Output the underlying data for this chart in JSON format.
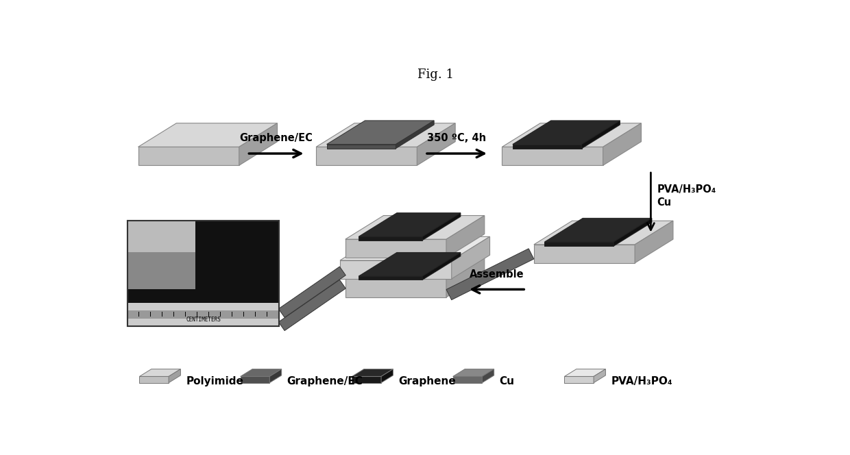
{
  "title": "Fig. 1",
  "title_fontsize": 13,
  "background_color": "#ffffff",
  "arrow_label1": "Graphene/EC",
  "arrow_label2": "350 ºC, 4h",
  "arrow_label3_line1": "PVA/H₃PO₄",
  "arrow_label3_line2": "Cu",
  "arrow_label4": "Assemble",
  "polyimide_color": "#c0c0c0",
  "polyimide_top": "#d8d8d8",
  "polyimide_side": "#a0a0a0",
  "graphene_ec_color": "#505050",
  "graphene_ec_top": "#686868",
  "graphene_ec_side": "#383838",
  "graphene_color": "#1a1a1a",
  "graphene_top": "#282828",
  "graphene_side": "#101010",
  "cu_color": "#686868",
  "cu_top": "#888888",
  "cu_side": "#484848",
  "pva_color": "#d0d0d0",
  "pva_top": "#e8e8e8",
  "pva_side": "#b0b0b0",
  "edge_color": "#888888",
  "text_fontsize": 10.5,
  "legend_fontsize": 11
}
